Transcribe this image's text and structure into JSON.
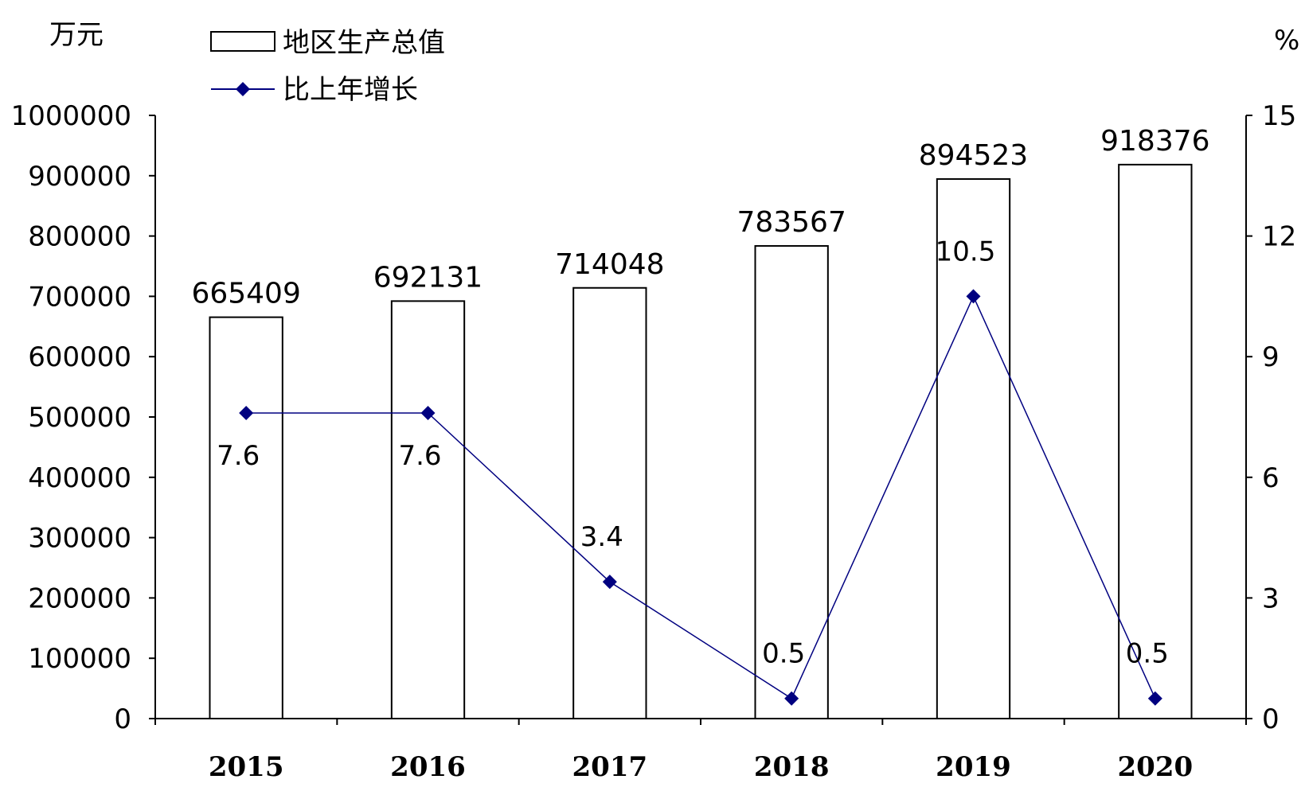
{
  "chart_data": {
    "type": "bar",
    "categories": [
      "2015",
      "2016",
      "2017",
      "2018",
      "2019",
      "2020"
    ],
    "series": [
      {
        "name": "地区生产总值",
        "type": "bar",
        "axis": "left",
        "values": [
          665409,
          692131,
          714048,
          783567,
          894523,
          918376
        ],
        "labels": [
          "665409",
          "692131",
          "714048",
          "783567",
          "894523",
          "918376"
        ]
      },
      {
        "name": "比上年增长",
        "type": "line",
        "axis": "right",
        "values": [
          7.6,
          7.6,
          3.4,
          0.5,
          10.5,
          0.5
        ],
        "labels": [
          "7.6",
          "7.6",
          "3.4",
          "0.5",
          "10.5",
          "0.5"
        ]
      }
    ],
    "left_axis": {
      "unit": "万元",
      "ylim": [
        0,
        1000000
      ],
      "ticks": [
        "0",
        "100000",
        "200000",
        "300000",
        "400000",
        "500000",
        "600000",
        "700000",
        "800000",
        "900000",
        "1000000"
      ]
    },
    "right_axis": {
      "unit": "%",
      "ylim": [
        0,
        15
      ],
      "ticks": [
        "0",
        "3",
        "6",
        "9",
        "12",
        "15"
      ]
    },
    "legend": {
      "position": "top-left",
      "entries": [
        "地区生产总值",
        "比上年增长"
      ]
    },
    "grid": false,
    "colors": {
      "bar_fill": "#ffffff",
      "bar_stroke": "#000000",
      "line": "#000080",
      "marker": "#000080"
    }
  }
}
